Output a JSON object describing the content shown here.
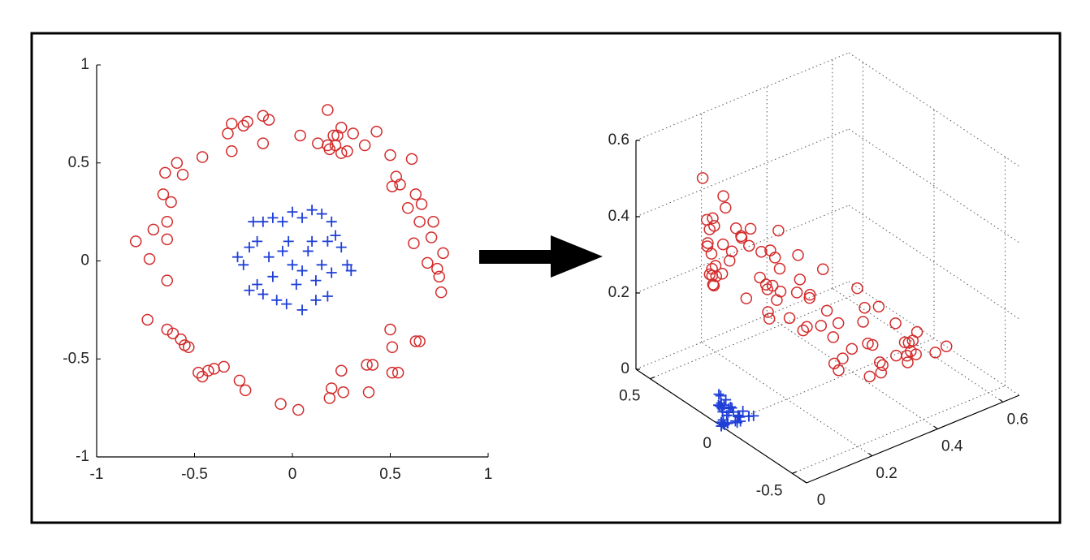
{
  "chart_data": [
    {
      "type": "scatter",
      "xlim": [
        -1,
        1
      ],
      "ylim": [
        -1,
        1
      ],
      "xticks": [
        -1,
        -0.5,
        0,
        0.5,
        1
      ],
      "yticks": [
        -1,
        -0.5,
        0,
        0.5,
        1
      ],
      "grid": false,
      "series": [
        {
          "color": "#d42a2a",
          "marker": "o",
          "x": [
            -0.8,
            -0.73,
            -0.71,
            -0.64,
            -0.64,
            -0.62,
            -0.66,
            -0.65,
            -0.59,
            -0.56,
            -0.46,
            -0.64,
            -0.74,
            -0.64,
            -0.61,
            -0.57,
            -0.55,
            -0.53,
            -0.48,
            -0.46,
            -0.43,
            -0.4,
            -0.35,
            -0.27,
            -0.24,
            -0.06,
            0.03,
            0.19,
            0.2,
            0.25,
            0.26,
            0.38,
            0.41,
            0.39,
            0.51,
            0.54,
            0.5,
            0.51,
            0.63,
            0.65,
            0.69,
            0.74,
            0.75,
            0.76,
            0.77,
            0.71,
            0.72,
            0.65,
            0.62,
            0.59,
            0.66,
            0.63,
            0.55,
            0.53,
            0.51,
            0.61,
            0.5,
            0.43,
            0.37,
            0.31,
            0.28,
            0.25,
            0.23,
            0.21,
            0.19,
            0.25,
            0.22,
            0.18,
            0.13,
            0.04,
            0.18,
            -0.15,
            -0.12,
            -0.15,
            -0.23,
            -0.25,
            -0.31,
            -0.33,
            -0.31
          ],
          "values": [
            0.1,
            0.01,
            0.16,
            0.11,
            0.2,
            0.3,
            0.34,
            0.45,
            0.5,
            0.44,
            0.53,
            -0.1,
            -0.3,
            -0.35,
            -0.37,
            -0.4,
            -0.43,
            -0.44,
            -0.57,
            -0.59,
            -0.56,
            -0.55,
            -0.54,
            -0.61,
            -0.66,
            -0.73,
            -0.76,
            -0.7,
            -0.65,
            -0.56,
            -0.67,
            -0.53,
            -0.53,
            -0.67,
            -0.57,
            -0.57,
            -0.35,
            -0.44,
            -0.41,
            -0.41,
            -0.01,
            -0.04,
            -0.08,
            -0.16,
            0.04,
            0.12,
            0.2,
            0.2,
            0.09,
            0.27,
            0.29,
            0.34,
            0.39,
            0.43,
            0.38,
            0.52,
            0.54,
            0.66,
            0.59,
            0.65,
            0.56,
            0.68,
            0.64,
            0.64,
            0.57,
            0.55,
            0.59,
            0.59,
            0.6,
            0.64,
            0.77,
            0.6,
            0.72,
            0.74,
            0.71,
            0.69,
            0.56,
            0.65,
            0.7
          ]
        },
        {
          "color": "#1f3fd6",
          "marker": "+",
          "x": [
            -0.28,
            -0.25,
            -0.22,
            -0.18,
            -0.15,
            -0.1,
            -0.05,
            0,
            0.05,
            0.1,
            0.15,
            0.2,
            0.22,
            0.25,
            0.28,
            0.3,
            0.2,
            0.12,
            0.05,
            0,
            -0.05,
            -0.12,
            -0.18,
            -0.22,
            -0.15,
            -0.08,
            -0.03,
            0.05,
            0.12,
            0.18,
            0.08,
            0.1,
            -0.02,
            0.15,
            -0.1,
            0.02,
            -0.2,
            0.18
          ],
          "values": [
            0.02,
            -0.02,
            0.07,
            0.1,
            0.2,
            0.22,
            0.2,
            0.25,
            0.22,
            0.26,
            0.24,
            0.2,
            0.13,
            0.07,
            -0.02,
            -0.05,
            -0.06,
            -0.1,
            -0.05,
            -0.02,
            0.05,
            0.02,
            -0.12,
            -0.15,
            -0.17,
            -0.2,
            -0.22,
            -0.25,
            -0.2,
            -0.18,
            0.05,
            0.1,
            0.1,
            -0.02,
            -0.08,
            -0.12,
            0.2,
            0.1
          ]
        }
      ]
    },
    {
      "type": "scatter3d",
      "xlim": [
        0,
        0.65
      ],
      "ylim": [
        -0.6,
        0.6
      ],
      "zlim": [
        0,
        0.6
      ],
      "xticks": [
        0,
        0.2,
        0.4,
        0.6
      ],
      "yticks": [
        -0.5,
        0,
        0.5
      ],
      "zticks": [
        0,
        0.2,
        0.4,
        0.6
      ],
      "grid": true,
      "series": [
        {
          "color": "#d42a2a",
          "marker": "o",
          "x": [
            0.64,
            0.53,
            0.5,
            0.41,
            0.41,
            0.38,
            0.44,
            0.42,
            0.35,
            0.31,
            0.21,
            0.41,
            0.55,
            0.41,
            0.37,
            0.32,
            0.3,
            0.28,
            0.23,
            0.21,
            0.18,
            0.16,
            0.12,
            0.07,
            0.06,
            0,
            0,
            0.04,
            0.04,
            0.06,
            0.07,
            0.14,
            0.17,
            0.15,
            0.26,
            0.29,
            0.25,
            0.26,
            0.4,
            0.42,
            0.48,
            0.55,
            0.56,
            0.58,
            0.59,
            0.5,
            0.52,
            0.42,
            0.38,
            0.35,
            0.44,
            0.4,
            0.3,
            0.28,
            0.26,
            0.37,
            0.25,
            0.18,
            0.14,
            0.1,
            0.08,
            0.06,
            0.05,
            0.04,
            0.04,
            0.06,
            0.05,
            0.03,
            0.02,
            0,
            0.03,
            0.02,
            0.01,
            0.02,
            0.05,
            0.06,
            0.1,
            0.11,
            0.1
          ],
          "y": [
            -0.11,
            -0.01,
            -0.16,
            -0.1,
            -0.18,
            -0.26,
            -0.32,
            -0.41,
            -0.42,
            -0.35,
            -0.34,
            0.09,
            0.31,
            0.32,
            0.32,
            0.32,
            0.33,
            0.33,
            0.39,
            0.38,
            0.34,
            0.31,
            0.27,
            0.23,
            0.22,
            0.06,
            -0.03,
            -0.19,
            -0.18,
            -0.2,
            -0.25,
            -0.28,
            -0.31,
            -0.37,
            -0.41,
            -0.44,
            -0.25,
            -0.32,
            -0.37,
            -0.38,
            -0.01,
            -0.04,
            -0.08,
            -0.17,
            0.04,
            0.12,
            0.2,
            0.18,
            0.08,
            0.23,
            0.27,
            0.3,
            0.3,
            0.32,
            0.27,
            0.45,
            0.38,
            0.4,
            0.31,
            0.28,
            0.22,
            0.24,
            0.21,
            0.19,
            0.15,
            0.19,
            0.18,
            0.15,
            0.11,
            0.04,
            0.2,
            -0.13,
            -0.12,
            -0.16,
            -0.23,
            -0.24,
            -0.25,
            -0.3,
            -0.31
          ],
          "z": [
            0.01,
            0,
            0.03,
            0.01,
            0.04,
            0.09,
            0.12,
            0.2,
            0.25,
            0.19,
            0.28,
            0.01,
            0.09,
            0.12,
            0.14,
            0.16,
            0.18,
            0.19,
            0.32,
            0.35,
            0.31,
            0.3,
            0.29,
            0.37,
            0.44,
            0.53,
            0.58,
            0.49,
            0.42,
            0.31,
            0.45,
            0.28,
            0.28,
            0.45,
            0.32,
            0.32,
            0.12,
            0.19,
            0.17,
            0.17,
            0,
            0,
            0.01,
            0.03,
            0,
            0.01,
            0.04,
            0.04,
            0.01,
            0.07,
            0.08,
            0.12,
            0.15,
            0.18,
            0.14,
            0.27,
            0.29,
            0.44,
            0.35,
            0.42,
            0.31,
            0.46,
            0.41,
            0.41,
            0.32,
            0.3,
            0.35,
            0.35,
            0.36,
            0.41,
            0.59,
            0.36,
            0.52,
            0.55,
            0.5,
            0.48,
            0.31,
            0.42,
            0.49
          ]
        },
        {
          "color": "#1f3fd6",
          "marker": "+",
          "x": [
            0.08,
            0.06,
            0.05,
            0.03,
            0.02,
            0.01,
            0,
            0,
            0,
            0.01,
            0.02,
            0.04,
            0.05,
            0.06,
            0.08,
            0.09,
            0.04,
            0.01,
            0,
            0,
            0,
            0.01,
            0.03,
            0.05,
            0.02,
            0.01,
            0,
            0,
            0.01,
            0.03,
            0.01,
            0.01,
            0,
            0.02,
            0.01,
            0,
            0.04,
            0.03
          ],
          "y": [
            -0.01,
            0.01,
            -0.02,
            -0.03,
            -0.04,
            -0.03,
            -0.01,
            0,
            0.02,
            0.04,
            0.05,
            0.06,
            0.04,
            0.02,
            -0.01,
            -0.02,
            -0.02,
            -0.02,
            0,
            0,
            0,
            0,
            0.03,
            0.05,
            0.04,
            0.02,
            0.01,
            -0.02,
            -0.03,
            -0.05,
            0.01,
            0.01,
            0,
            0,
            0.01,
            0,
            -0.06,
            0.03
          ],
          "z": [
            0,
            0,
            0,
            0.01,
            0.04,
            0.05,
            0.04,
            0.06,
            0.05,
            0.07,
            0.06,
            0.04,
            0.02,
            0,
            0,
            0,
            0,
            0.01,
            0,
            0,
            0,
            0,
            0.01,
            0.02,
            0.03,
            0.04,
            0.05,
            0.06,
            0.04,
            0.03,
            0,
            0.01,
            0.01,
            0,
            0.01,
            0.01,
            0.04,
            0.01
          ]
        }
      ]
    }
  ]
}
